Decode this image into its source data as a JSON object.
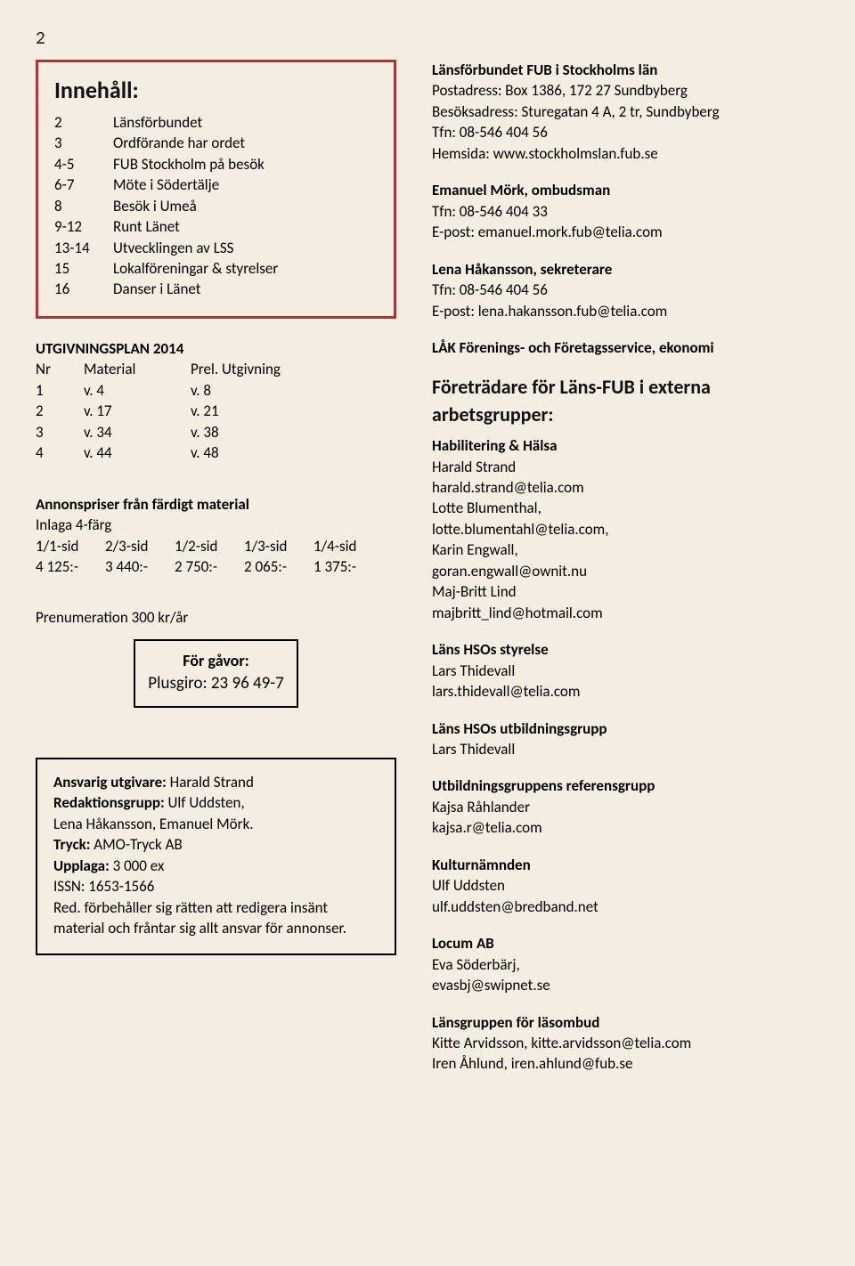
{
  "page_number": "2",
  "colors": {
    "background": "#f4ede1",
    "border_red": "#a23a3a",
    "border_black": "#000000",
    "text": "#111111"
  },
  "innehall": {
    "title": "Innehåll:",
    "items": [
      {
        "num": "2",
        "label": "Länsförbundet"
      },
      {
        "num": "3",
        "label": "Ordförande har ordet"
      },
      {
        "num": "4-5",
        "label": "FUB Stockholm på besök"
      },
      {
        "num": "6-7",
        "label": "Möte i Södertälje"
      },
      {
        "num": "8",
        "label": "Besök i Umeå"
      },
      {
        "num": "9-12",
        "label": "Runt Länet"
      },
      {
        "num": "13-14",
        "label": "Utvecklingen av LSS"
      },
      {
        "num": "15",
        "label": "Lokalföreningar & styrelser"
      },
      {
        "num": "16",
        "label": "Danser i Länet"
      }
    ]
  },
  "utg": {
    "title": "UTGIVNINGSPLAN 2014",
    "header": {
      "c1": "Nr",
      "c2": "Material",
      "c3": "Prel. Utgivning"
    },
    "rows": [
      {
        "c1": "1",
        "c2": "v. 4",
        "c3": "v. 8"
      },
      {
        "c1": "2",
        "c2": "v. 17",
        "c3": "v. 21"
      },
      {
        "c1": "3",
        "c2": "v. 34",
        "c3": "v. 38"
      },
      {
        "c1": "4",
        "c2": "v. 44",
        "c3": "v. 48"
      }
    ]
  },
  "annons": {
    "title": "Annonspriser från färdigt material",
    "sub": "Inlaga 4-färg",
    "sizes": [
      "1/1-sid",
      "2/3-sid",
      "1/2-sid",
      "1/3-sid",
      "1/4-sid"
    ],
    "prices": [
      "4 125:-",
      "3 440:-",
      "2 750:-",
      "2 065:-",
      "1 375:-"
    ]
  },
  "prenum": "Prenumeration 300 kr/år",
  "gavor": {
    "title": "För gåvor:",
    "line": "Plusgiro: 23 96 49-7"
  },
  "colophon": {
    "l1_label": "Ansvarig utgivare:",
    "l1_val": " Harald Strand",
    "l2_label": "Redaktionsgrupp:",
    "l2_val": " Ulf Uddsten,",
    "l3": "Lena Håkansson, Emanuel Mörk.",
    "l4_label": "Tryck:",
    "l4_val": " AMO-Tryck AB",
    "l5_label": "Upplaga:",
    "l5_val": " 3 000 ex",
    "l6": "ISSN: 1653-1566",
    "l7": "Red. förbehåller sig rätten att redigera insänt material och fråntar sig allt ansvar för annonser."
  },
  "right": {
    "org": {
      "name": "Länsförbundet FUB i Stockholms län",
      "post": "Postadress: Box 1386, 172 27 Sundbyberg",
      "besok": "Besöksadress: Sturegatan 4 A, 2 tr, Sundbyberg",
      "tfn": "Tfn: 08-546 404 56",
      "hemsida": "Hemsida: www.stockholmslan.fub.se"
    },
    "contacts": [
      {
        "name": "Emanuel Mörk, ombudsman",
        "lines": [
          "Tfn: 08-546 404 33",
          "E-post: emanuel.mork.fub@telia.com"
        ]
      },
      {
        "name": "Lena Håkansson, sekreterare",
        "lines": [
          "Tfn: 08-546 404 56",
          "E-post: lena.hakansson.fub@telia.com"
        ]
      },
      {
        "name": "LÅK Förenings- och Företagsservice, ekonomi",
        "lines": []
      }
    ],
    "foretradare_title": "Företrädare för Läns-FUB i externa arbetsgrupper:",
    "groups": [
      {
        "title": "Habilitering & Hälsa",
        "lines": [
          "Harald Strand",
          "harald.strand@telia.com",
          "Lotte Blumenthal,",
          "lotte.blumentahl@telia.com,",
          "Karin Engwall,",
          "goran.engwall@ownit.nu",
          "Maj-Britt Lind",
          "majbritt_lind@hotmail.com"
        ]
      },
      {
        "title": "Läns HSOs styrelse",
        "lines": [
          "Lars Thidevall",
          "lars.thidevall@telia.com"
        ]
      },
      {
        "title": "Läns HSOs utbildningsgrupp",
        "lines": [
          "Lars Thidevall"
        ]
      },
      {
        "title": "Utbildningsgruppens referensgrupp",
        "lines": [
          "Kajsa Råhlander",
          "kajsa.r@telia.com"
        ]
      },
      {
        "title": "Kulturnämnden",
        "lines": [
          "Ulf Uddsten",
          "ulf.uddsten@bredband.net"
        ]
      },
      {
        "title": "Locum AB",
        "lines": [
          "Eva Söderbärj,",
          "evasbj@swipnet.se"
        ]
      },
      {
        "title": "Länsgruppen för läsombud",
        "lines": [
          "Kitte Arvidsson, kitte.arvidsson@telia.com",
          "Iren Åhlund, iren.ahlund@fub.se"
        ]
      }
    ]
  }
}
